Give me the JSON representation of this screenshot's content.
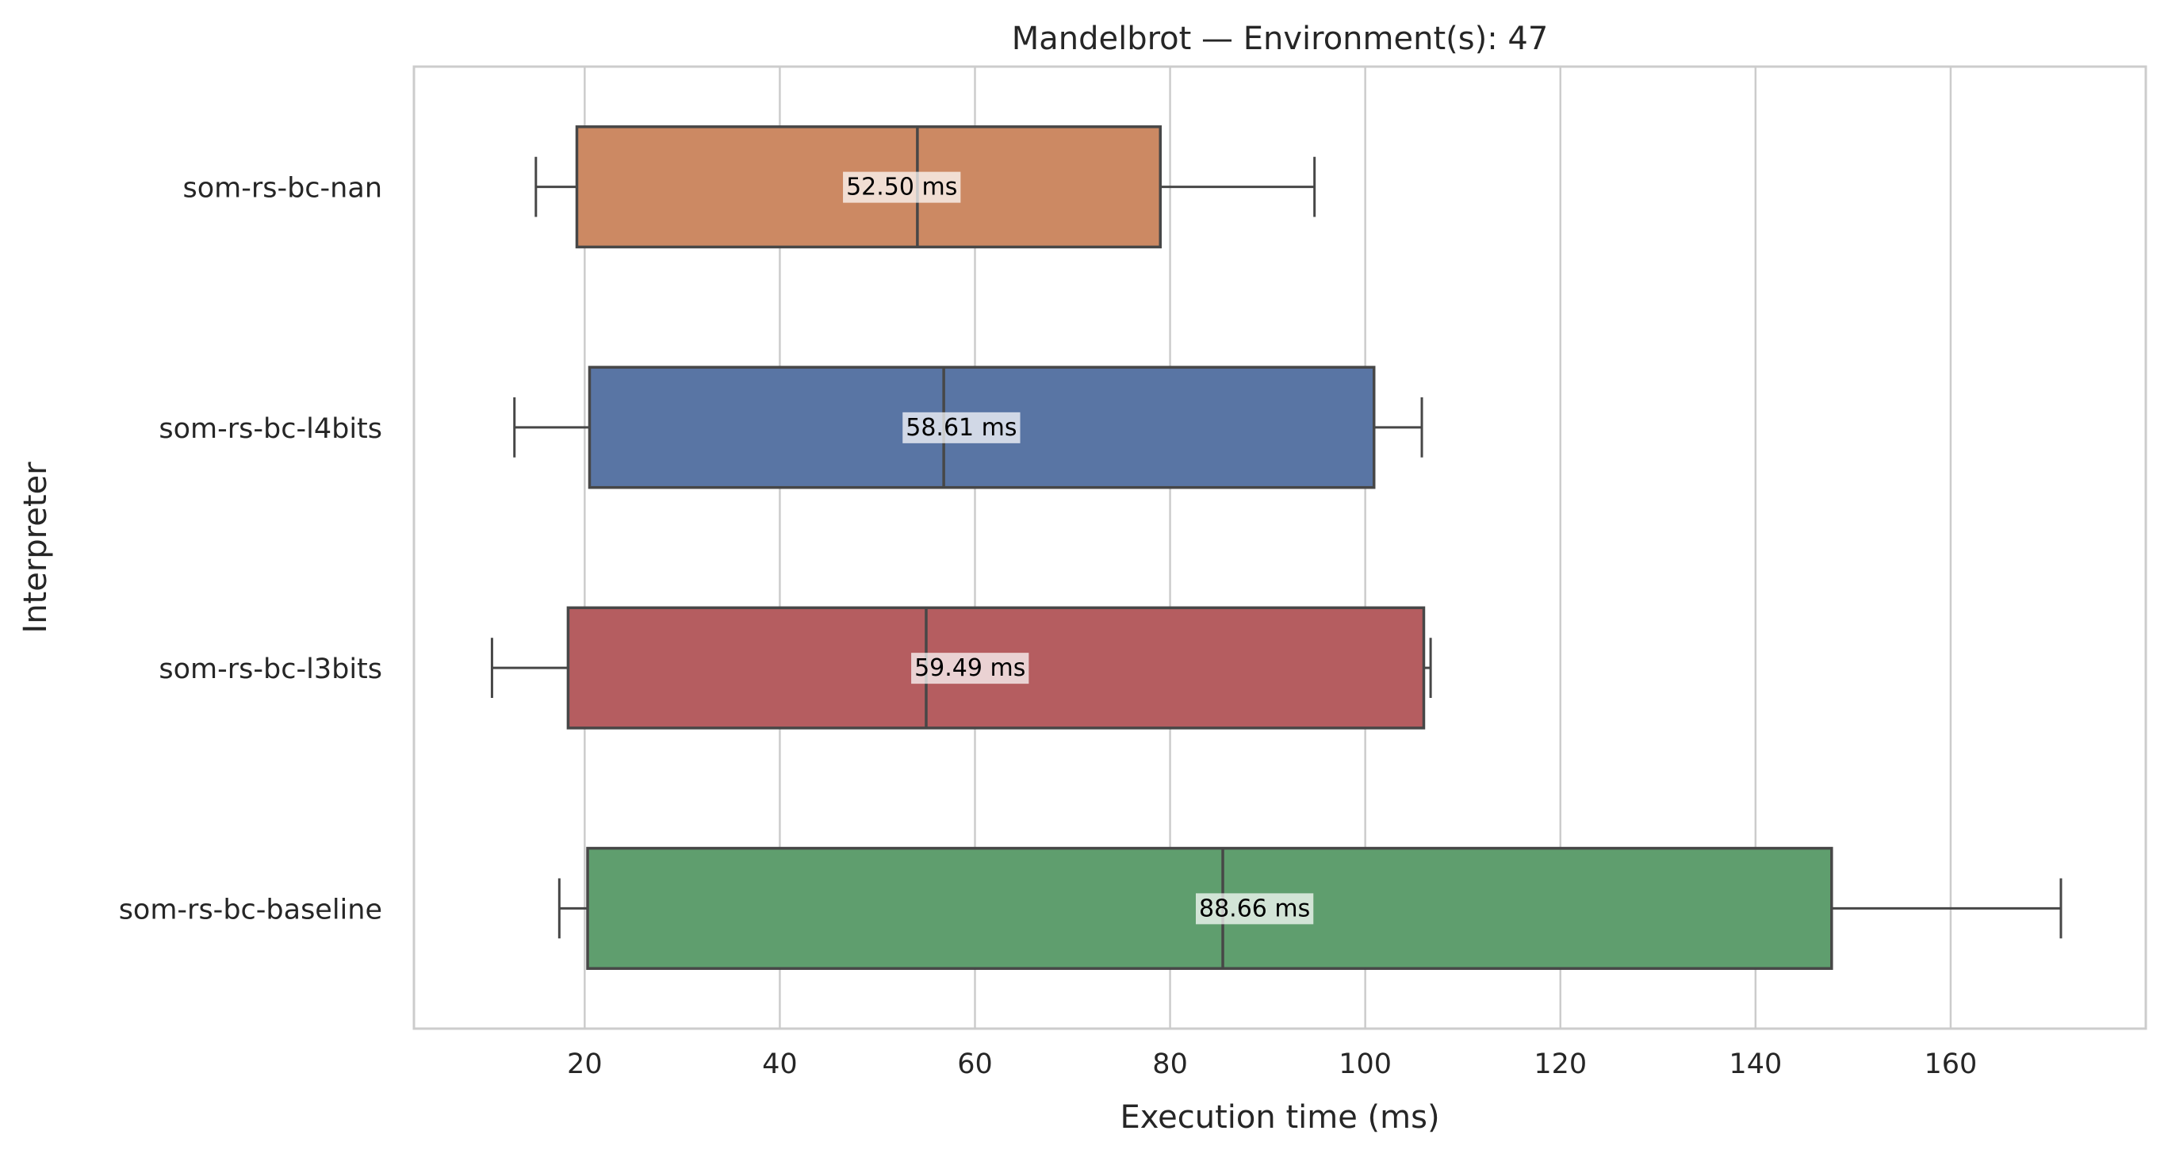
{
  "chart_data": {
    "type": "boxplot",
    "orientation": "horizontal",
    "title": "Mandelbrot — Environment(s): 47",
    "xlabel": "Execution time (ms)",
    "ylabel": "Interpreter",
    "xlim": [
      2.5,
      180
    ],
    "xticks": [
      20,
      40,
      60,
      80,
      100,
      120,
      140,
      160
    ],
    "grid": "vertical",
    "series": [
      {
        "name": "som-rs-bc-nan",
        "color": "#cc8963",
        "whisker_low": 15,
        "q1": 19.2,
        "median": 54.1,
        "q3": 79,
        "whisker_high": 94.8,
        "label": "52.50 ms",
        "label_value": 52.5
      },
      {
        "name": "som-rs-bc-l4bits",
        "color": "#5975a4",
        "whisker_low": 12.8,
        "q1": 20.5,
        "median": 56.8,
        "q3": 100.9,
        "whisker_high": 105.8,
        "label": "58.61 ms",
        "label_value": 58.61
      },
      {
        "name": "som-rs-bc-l3bits",
        "color": "#b55d60",
        "whisker_low": 10.5,
        "q1": 18.3,
        "median": 55,
        "q3": 106,
        "whisker_high": 106.7,
        "label": "59.49 ms",
        "label_value": 59.49
      },
      {
        "name": "som-rs-bc-baseline",
        "color": "#5f9e6e",
        "whisker_low": 17.4,
        "q1": 20.3,
        "median": 85.4,
        "q3": 147.8,
        "whisker_high": 171.3,
        "label": "88.66 ms",
        "label_value": 88.66
      }
    ]
  }
}
